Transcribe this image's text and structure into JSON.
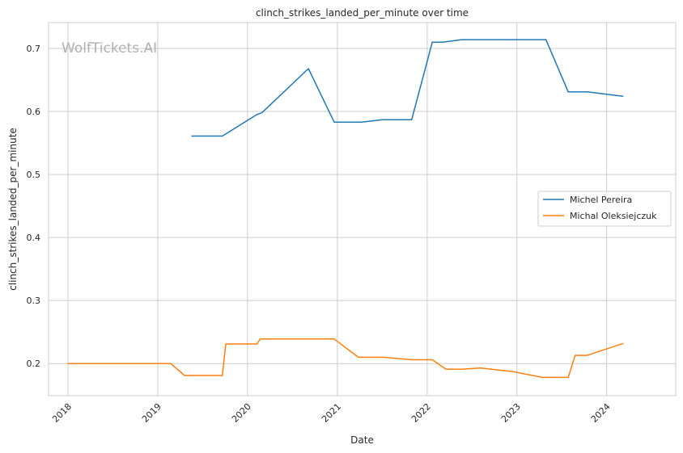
{
  "watermark": "WolfTickets.AI",
  "chart_data": {
    "type": "line",
    "title": "clinch_strikes_landed_per_minute over time",
    "xlabel": "Date",
    "ylabel": "clinch_strikes_landed_per_minute",
    "x_type": "date",
    "xlim": [
      "2017-10-14",
      "2024-10-08"
    ],
    "ylim": [
      0.149,
      0.741
    ],
    "x_ticks": [
      "2018",
      "2019",
      "2020",
      "2021",
      "2022",
      "2023",
      "2024"
    ],
    "y_ticks": [
      "0.2",
      "0.3",
      "0.4",
      "0.5",
      "0.6",
      "0.7"
    ],
    "grid": true,
    "legend_position": "center-right",
    "series": [
      {
        "name": "Michel Pereira",
        "color": "#1f77b4",
        "points": [
          {
            "x": "2019-05-18",
            "y": 0.561
          },
          {
            "x": "2019-09-21",
            "y": 0.561
          },
          {
            "x": "2020-02-08",
            "y": 0.595
          },
          {
            "x": "2020-02-29",
            "y": 0.598
          },
          {
            "x": "2020-09-05",
            "y": 0.668
          },
          {
            "x": "2020-12-19",
            "y": 0.583
          },
          {
            "x": "2021-04-10",
            "y": 0.583
          },
          {
            "x": "2021-07-03",
            "y": 0.587
          },
          {
            "x": "2021-10-30",
            "y": 0.587
          },
          {
            "x": "2022-01-22",
            "y": 0.71
          },
          {
            "x": "2022-03-05",
            "y": 0.71
          },
          {
            "x": "2022-05-21",
            "y": 0.714
          },
          {
            "x": "2023-04-29",
            "y": 0.714
          },
          {
            "x": "2023-07-29",
            "y": 0.631
          },
          {
            "x": "2023-10-14",
            "y": 0.631
          },
          {
            "x": "2024-03-09",
            "y": 0.624
          }
        ]
      },
      {
        "name": "Michal Oleksiejczuk",
        "color": "#ff7f0e",
        "points": [
          {
            "x": "2017-12-30",
            "y": 0.2
          },
          {
            "x": "2019-02-23",
            "y": 0.2
          },
          {
            "x": "2019-04-20",
            "y": 0.181
          },
          {
            "x": "2019-09-21",
            "y": 0.181
          },
          {
            "x": "2019-10-05",
            "y": 0.231
          },
          {
            "x": "2020-02-08",
            "y": 0.231
          },
          {
            "x": "2020-02-22",
            "y": 0.239
          },
          {
            "x": "2020-12-19",
            "y": 0.239
          },
          {
            "x": "2021-03-27",
            "y": 0.21
          },
          {
            "x": "2021-07-03",
            "y": 0.21
          },
          {
            "x": "2021-10-30",
            "y": 0.206
          },
          {
            "x": "2022-01-22",
            "y": 0.206
          },
          {
            "x": "2022-03-19",
            "y": 0.191
          },
          {
            "x": "2022-05-21",
            "y": 0.191
          },
          {
            "x": "2022-08-06",
            "y": 0.193
          },
          {
            "x": "2022-12-17",
            "y": 0.187
          },
          {
            "x": "2023-04-15",
            "y": 0.178
          },
          {
            "x": "2023-07-29",
            "y": 0.178
          },
          {
            "x": "2023-08-26",
            "y": 0.213
          },
          {
            "x": "2023-10-14",
            "y": 0.213
          },
          {
            "x": "2024-03-09",
            "y": 0.232
          }
        ]
      }
    ]
  }
}
